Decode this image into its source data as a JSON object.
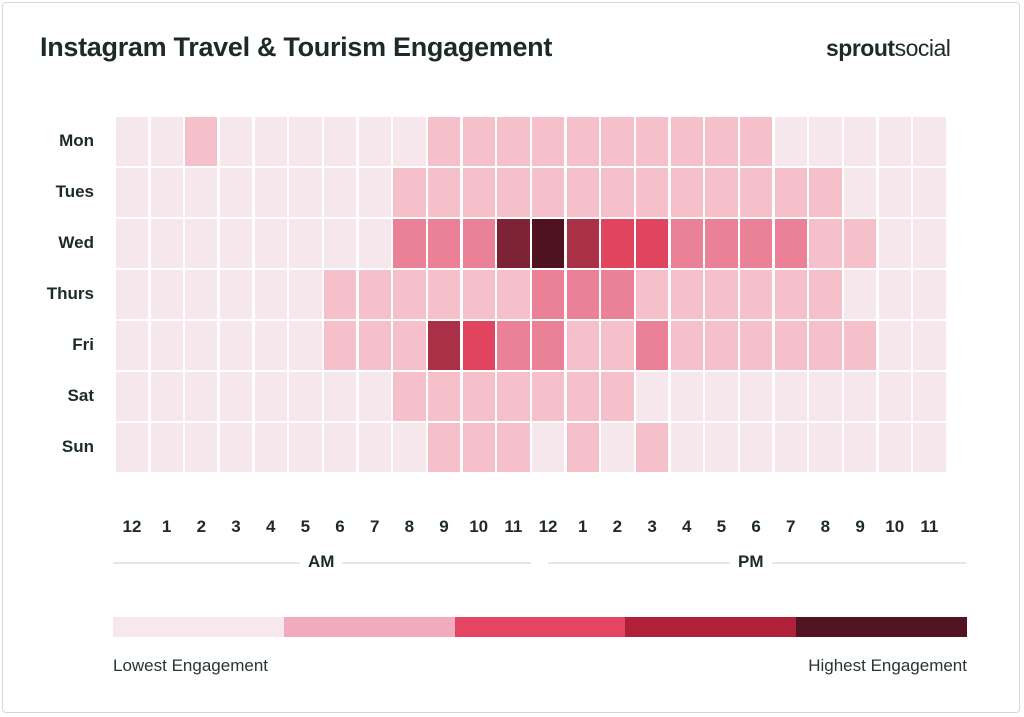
{
  "chart_data": {
    "type": "heatmap",
    "title": "Instagram Travel & Tourism Engagement",
    "brand": {
      "bold": "sprout",
      "light": "social"
    },
    "rows": [
      "Mon",
      "Tues",
      "Wed",
      "Thurs",
      "Fri",
      "Sat",
      "Sun"
    ],
    "columns": [
      "12",
      "1",
      "2",
      "3",
      "4",
      "5",
      "6",
      "7",
      "8",
      "9",
      "10",
      "11",
      "12",
      "1",
      "2",
      "3",
      "4",
      "5",
      "6",
      "7",
      "8",
      "9",
      "10",
      "11"
    ],
    "period_labels": {
      "am": "AM",
      "pm": "PM"
    },
    "level_colors": [
      "#f5e7ec",
      "#f5c0ca",
      "#ea8196",
      "#e0445f",
      "#aa3047",
      "#7e2335",
      "#4f121f"
    ],
    "values": [
      [
        0,
        0,
        1,
        0,
        0,
        0,
        0,
        0,
        0,
        1,
        1,
        1,
        1,
        1,
        1,
        1,
        1,
        1,
        1,
        0,
        0,
        0,
        0,
        0
      ],
      [
        0,
        0,
        0,
        0,
        0,
        0,
        0,
        0,
        1,
        1,
        1,
        1,
        1,
        1,
        1,
        1,
        1,
        1,
        1,
        1,
        1,
        0,
        0,
        0
      ],
      [
        0,
        0,
        0,
        0,
        0,
        0,
        0,
        0,
        2,
        2,
        2,
        5,
        6,
        4,
        3,
        3,
        2,
        2,
        2,
        2,
        1,
        1,
        0,
        0
      ],
      [
        0,
        0,
        0,
        0,
        0,
        0,
        1,
        1,
        1,
        1,
        1,
        1,
        2,
        2,
        2,
        1,
        1,
        1,
        1,
        1,
        1,
        0,
        0,
        0
      ],
      [
        0,
        0,
        0,
        0,
        0,
        0,
        1,
        1,
        1,
        4,
        3,
        2,
        2,
        1,
        1,
        2,
        1,
        1,
        1,
        1,
        1,
        1,
        0,
        0
      ],
      [
        0,
        0,
        0,
        0,
        0,
        0,
        0,
        0,
        1,
        1,
        1,
        1,
        1,
        1,
        1,
        0,
        0,
        0,
        0,
        0,
        0,
        0,
        0,
        0
      ],
      [
        0,
        0,
        0,
        0,
        0,
        0,
        0,
        0,
        0,
        1,
        1,
        1,
        0,
        1,
        0,
        1,
        0,
        0,
        0,
        0,
        0,
        0,
        0,
        0
      ]
    ],
    "scale": "0 = lowest engagement, 6 = highest engagement",
    "legend": {
      "colors": [
        "#f7e8ee",
        "#f0abbf",
        "#e34562",
        "#b02038",
        "#521422"
      ],
      "low_label": "Lowest Engagement",
      "high_label": "Highest Engagement"
    }
  }
}
